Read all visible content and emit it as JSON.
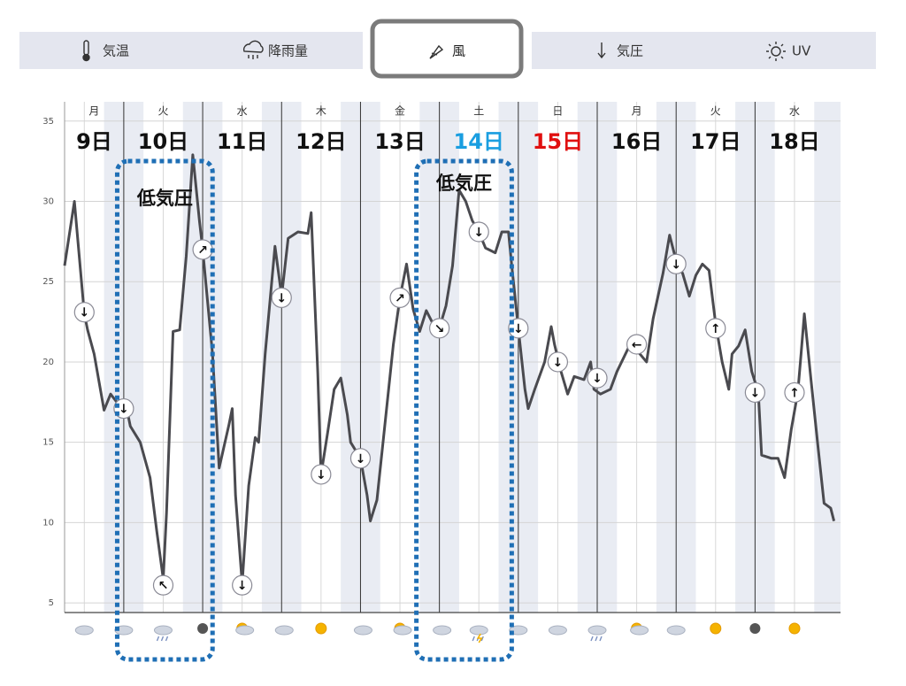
{
  "tabs": {
    "items": [
      {
        "label": "気温"
      },
      {
        "label": "降雨量"
      },
      {
        "label": "風",
        "selected": true
      },
      {
        "label": "気圧"
      },
      {
        "label": "UV"
      }
    ]
  },
  "chart_data": {
    "type": "line",
    "color": "#4a4a4f",
    "xlim": [
      6,
      242
    ],
    "ylim": [
      4.4,
      36.2
    ],
    "yticks": [
      5,
      10,
      15,
      20,
      25,
      30,
      35
    ],
    "xticks": [
      24,
      48,
      72,
      96,
      120,
      144,
      168,
      192,
      216
    ],
    "days": [
      {
        "weekday": "月",
        "date": "9日",
        "color": "#111111"
      },
      {
        "weekday": "火",
        "date": "10日",
        "color": "#111111"
      },
      {
        "weekday": "水",
        "date": "11日",
        "color": "#111111"
      },
      {
        "weekday": "木",
        "date": "12日",
        "color": "#111111"
      },
      {
        "weekday": "金",
        "date": "13日",
        "color": "#111111"
      },
      {
        "weekday": "土",
        "date": "14日",
        "color": "#1a9ee0"
      },
      {
        "weekday": "日",
        "date": "15日",
        "color": "#e01010"
      },
      {
        "weekday": "月",
        "date": "16日",
        "color": "#111111"
      },
      {
        "weekday": "火",
        "date": "17日",
        "color": "#111111"
      },
      {
        "weekday": "水",
        "date": "18日",
        "color": "#111111"
      }
    ],
    "x": [
      6,
      9,
      12,
      13,
      15,
      18,
      20,
      23,
      25,
      26,
      29,
      32,
      34,
      36,
      37,
      39,
      41,
      43,
      45,
      47,
      48,
      51,
      53,
      56,
      57,
      58,
      60,
      62,
      64,
      65,
      67,
      70,
      72,
      74,
      77,
      80,
      81,
      83,
      84,
      86,
      88,
      90,
      92,
      93,
      96,
      98,
      99,
      101,
      103,
      106,
      108,
      110,
      112,
      114,
      116,
      118,
      120,
      122,
      124,
      126,
      128,
      130,
      132,
      134,
      137,
      139,
      141,
      142,
      144,
      146,
      147,
      149,
      152,
      154,
      155,
      157,
      159,
      161,
      164,
      166,
      167,
      169,
      172,
      174,
      178,
      181,
      183,
      185,
      188,
      190,
      192,
      194,
      196,
      198,
      200,
      202,
      204,
      206,
      208,
      209,
      211,
      213,
      215,
      217,
      218,
      221,
      223,
      225,
      227,
      229,
      230,
      231,
      233,
      235,
      237,
      239,
      240
    ],
    "values": [
      26.0,
      30.0,
      23.0,
      22.0,
      20.5,
      17.0,
      18.0,
      17.2,
      17.0,
      16.0,
      15.0,
      12.8,
      9.5,
      6.5,
      10.6,
      21.9,
      22.0,
      26.6,
      32.9,
      28.8,
      27.0,
      20.5,
      13.4,
      16.1,
      17.1,
      11.7,
      6.2,
      12.3,
      15.3,
      15.0,
      20.5,
      27.2,
      24.1,
      27.7,
      28.1,
      28.0,
      29.3,
      19.4,
      13.0,
      15.6,
      18.3,
      19.0,
      16.7,
      15.0,
      14.0,
      11.7,
      10.1,
      11.4,
      15.3,
      21.1,
      24.0,
      26.1,
      23.3,
      21.9,
      23.2,
      22.4,
      22.1,
      23.5,
      26.0,
      30.7,
      30.0,
      28.8,
      28.1,
      27.1,
      26.8,
      28.1,
      28.1,
      26.0,
      22.1,
      18.3,
      17.1,
      18.3,
      20.0,
      22.2,
      21.1,
      19.4,
      18.0,
      19.1,
      18.9,
      20.0,
      18.3,
      18.0,
      18.3,
      19.4,
      21.1,
      20.5,
      20.0,
      22.7,
      25.5,
      27.9,
      26.3,
      25.5,
      24.1,
      25.4,
      26.1,
      25.7,
      22.4,
      20.0,
      18.3,
      20.5,
      21.0,
      22.0,
      19.4,
      18.1,
      14.2,
      14.0,
      14.0,
      12.8,
      15.8,
      18.1,
      20.5,
      23.0,
      18.9,
      15.0,
      11.2,
      10.9,
      10.1
    ],
    "markers": {
      "x": [
        12,
        24,
        36,
        48,
        60,
        72,
        84,
        96,
        108,
        120,
        132,
        144,
        156,
        168,
        180,
        192,
        204,
        216,
        228
      ],
      "values": [
        23.1,
        17.1,
        6.1,
        27.0,
        6.1,
        24.0,
        13.0,
        14.0,
        24.0,
        22.1,
        28.1,
        22.1,
        20.0,
        19.0,
        21.1,
        26.1,
        22.1,
        18.1,
        18.1
      ],
      "labels": [
        "↓",
        "↓",
        "↖",
        "↗",
        "↓",
        "↓",
        "↓",
        "↓",
        "↗",
        "↘",
        "↓",
        "↓",
        "↓",
        "↓",
        "←",
        "↓",
        "↑",
        "↓",
        "↑"
      ]
    },
    "annotations": [
      {
        "text": "低気圧"
      },
      {
        "text": "低気圧"
      }
    ]
  }
}
